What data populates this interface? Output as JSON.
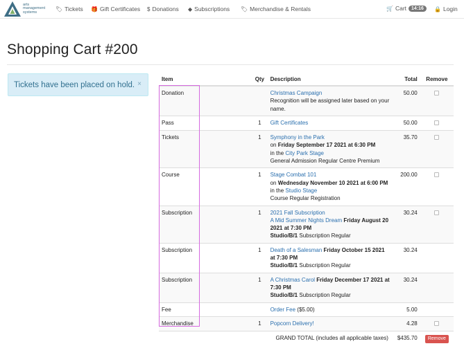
{
  "brand": {
    "line1": "arts",
    "line2": "management",
    "line3": "systems"
  },
  "nav": {
    "tickets": "Tickets",
    "gift_certificates": "Gift Certificates",
    "donations": "Donations",
    "subscriptions": "Subscriptions",
    "merchandise": "Merchandise & Rentals",
    "cart": "Cart",
    "cart_timer": "14:16",
    "login": "Login",
    "dollar": "$"
  },
  "page_title": "Shopping Cart #200",
  "alert": {
    "message": "Tickets have been placed on hold.",
    "close": "×"
  },
  "table": {
    "headers": {
      "item": "Item",
      "qty": "Qty",
      "description": "Description",
      "total": "Total",
      "remove": "Remove"
    },
    "rows": [
      {
        "item": "Donation",
        "qty": "",
        "link": "Christmas Campaign",
        "line1": "Recognition will be assigned later based on your name.",
        "total": "50.00"
      },
      {
        "item": "Pass",
        "qty": "1",
        "link": "Gift Certificates",
        "total": "50.00"
      },
      {
        "item": "Tickets",
        "qty": "1",
        "link": "Symphony in the Park",
        "on": "on",
        "date": "Friday September 17 2021 at 6:30 PM",
        "in": "in the",
        "venue": "City Park Stage",
        "line1": "General Admission Regular Centre Premium",
        "total": "35.70"
      },
      {
        "item": "Course",
        "qty": "1",
        "link": "Stage Combat 101",
        "on": "on",
        "date": "Wednesday November 10 2021 at 6:00 PM",
        "in": "in the",
        "venue": "Studio Stage",
        "line1": "Course Regular Registration",
        "total": "200.00"
      },
      {
        "item": "Subscription",
        "qty": "1",
        "link": "2021 Fall Subscription",
        "link2": "A Mid Summer Nights Dream",
        "date": "Friday August 20 2021 at 7:30 PM",
        "seat": "Studio/B/1",
        "seat_type": "Subscription Regular",
        "total": "30.24"
      },
      {
        "item": "Subscription",
        "qty": "1",
        "link": "Death of a Salesman",
        "date": "Friday October 15 2021 at 7:30 PM",
        "seat": "Studio/B/1",
        "seat_type": "Subscription Regular",
        "total": "30.24"
      },
      {
        "item": "Subscription",
        "qty": "1",
        "link": "A Christmas Carol",
        "date": "Friday December 17 2021 at 7:30 PM",
        "seat": "Studio/B/1",
        "seat_type": "Subscription Regular",
        "total": "30.24"
      },
      {
        "item": "Fee",
        "qty": "",
        "link": "Order Fee",
        "extra": "($5.00)",
        "total": "5.00"
      },
      {
        "item": "Merchandise",
        "qty": "1",
        "link": "Popcorn Delivery!",
        "total": "4.28"
      }
    ],
    "grand_total_label": "GRAND TOTAL (includes all applicable taxes)",
    "grand_total": "$435.70",
    "remove_label": "Remove"
  },
  "colors": {
    "link": "#2a6fae",
    "alert_bg": "#d9edf7",
    "remove_btn": "#d9534f",
    "highlight": "#d66ae0"
  }
}
